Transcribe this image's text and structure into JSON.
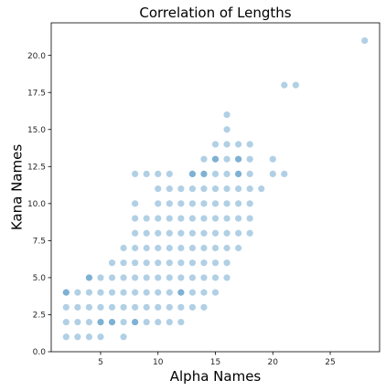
{
  "chart_data": {
    "type": "scatter",
    "title": "Correlation of Lengths",
    "xlabel": "Alpha Names",
    "ylabel": "Kana Names",
    "xlim": [
      0.7,
      29.3
    ],
    "ylim": [
      0.0,
      22.2
    ],
    "xticks": [
      5,
      10,
      15,
      20,
      25
    ],
    "yticks": [
      0.0,
      2.5,
      5.0,
      7.5,
      10.0,
      12.5,
      15.0,
      17.5,
      20.0
    ],
    "xtick_labels": [
      "5",
      "10",
      "15",
      "20",
      "25"
    ],
    "ytick_labels": [
      "0.0",
      "2.5",
      "5.0",
      "7.5",
      "10.0",
      "12.5",
      "15.0",
      "17.5",
      "20.0"
    ],
    "grid": false,
    "marker_color": "#1f77b4",
    "marker_alpha": 0.35,
    "series": [
      {
        "values": [
          [
            2,
            1
          ],
          [
            2,
            2
          ],
          [
            2,
            3
          ],
          [
            2,
            4
          ],
          [
            3,
            1
          ],
          [
            3,
            2
          ],
          [
            3,
            3
          ],
          [
            3,
            4
          ],
          [
            4,
            1
          ],
          [
            4,
            2
          ],
          [
            4,
            3
          ],
          [
            4,
            4
          ],
          [
            4,
            5
          ],
          [
            5,
            1
          ],
          [
            5,
            2
          ],
          [
            5,
            3
          ],
          [
            5,
            4
          ],
          [
            5,
            5
          ],
          [
            6,
            2
          ],
          [
            6,
            3
          ],
          [
            6,
            4
          ],
          [
            6,
            5
          ],
          [
            6,
            6
          ],
          [
            7,
            2
          ],
          [
            7,
            3
          ],
          [
            7,
            4
          ],
          [
            7,
            5
          ],
          [
            7,
            6
          ],
          [
            7,
            7
          ],
          [
            8,
            2
          ],
          [
            8,
            3
          ],
          [
            8,
            4
          ],
          [
            8,
            5
          ],
          [
            8,
            6
          ],
          [
            8,
            7
          ],
          [
            8,
            8
          ],
          [
            9,
            3
          ],
          [
            9,
            4
          ],
          [
            9,
            5
          ],
          [
            9,
            6
          ],
          [
            9,
            7
          ],
          [
            9,
            8
          ],
          [
            9,
            9
          ],
          [
            10,
            3
          ],
          [
            10,
            4
          ],
          [
            10,
            5
          ],
          [
            10,
            6
          ],
          [
            10,
            7
          ],
          [
            10,
            8
          ],
          [
            10,
            9
          ],
          [
            10,
            10
          ],
          [
            11,
            3
          ],
          [
            11,
            4
          ],
          [
            11,
            5
          ],
          [
            11,
            6
          ],
          [
            11,
            7
          ],
          [
            11,
            8
          ],
          [
            11,
            9
          ],
          [
            11,
            10
          ],
          [
            11,
            11
          ],
          [
            12,
            3
          ],
          [
            12,
            4
          ],
          [
            12,
            5
          ],
          [
            12,
            6
          ],
          [
            12,
            7
          ],
          [
            12,
            8
          ],
          [
            12,
            9
          ],
          [
            12,
            10
          ],
          [
            12,
            11
          ],
          [
            13,
            4
          ],
          [
            13,
            5
          ],
          [
            13,
            6
          ],
          [
            13,
            7
          ],
          [
            13,
            8
          ],
          [
            13,
            9
          ],
          [
            13,
            10
          ],
          [
            13,
            11
          ],
          [
            13,
            12
          ],
          [
            14,
            4
          ],
          [
            14,
            5
          ],
          [
            14,
            6
          ],
          [
            14,
            7
          ],
          [
            14,
            8
          ],
          [
            14,
            9
          ],
          [
            14,
            10
          ],
          [
            14,
            11
          ],
          [
            14,
            12
          ],
          [
            15,
            5
          ],
          [
            15,
            6
          ],
          [
            15,
            7
          ],
          [
            15,
            8
          ],
          [
            15,
            9
          ],
          [
            15,
            10
          ],
          [
            15,
            11
          ],
          [
            15,
            12
          ],
          [
            15,
            13
          ],
          [
            16,
            6
          ],
          [
            16,
            7
          ],
          [
            16,
            8
          ],
          [
            16,
            9
          ],
          [
            16,
            10
          ],
          [
            16,
            11
          ],
          [
            16,
            12
          ],
          [
            16,
            13
          ],
          [
            16,
            15
          ],
          [
            17,
            8
          ],
          [
            17,
            9
          ],
          [
            17,
            10
          ],
          [
            17,
            11
          ],
          [
            17,
            12
          ],
          [
            17,
            13
          ],
          [
            18,
            11
          ],
          [
            18,
            12
          ],
          [
            18,
            13
          ]
        ]
      },
      {
        "values": [
          [
            2,
            4
          ],
          [
            4,
            5
          ],
          [
            5,
            2
          ],
          [
            6,
            2
          ],
          [
            7,
            1
          ],
          [
            8,
            2
          ],
          [
            8,
            9
          ],
          [
            8,
            10
          ],
          [
            8,
            12
          ],
          [
            9,
            2
          ],
          [
            9,
            12
          ],
          [
            10,
            2
          ],
          [
            10,
            11
          ],
          [
            10,
            12
          ],
          [
            11,
            2
          ],
          [
            11,
            12
          ],
          [
            12,
            2
          ],
          [
            12,
            4
          ],
          [
            13,
            3
          ],
          [
            13,
            12
          ],
          [
            14,
            3
          ],
          [
            14,
            12
          ],
          [
            14,
            13
          ],
          [
            15,
            4
          ],
          [
            15,
            13
          ],
          [
            15,
            14
          ],
          [
            16,
            5
          ],
          [
            16,
            14
          ],
          [
            16,
            16
          ],
          [
            17,
            7
          ],
          [
            17,
            12
          ],
          [
            17,
            13
          ],
          [
            17,
            14
          ],
          [
            18,
            8
          ],
          [
            18,
            9
          ],
          [
            18,
            10
          ],
          [
            18,
            14
          ],
          [
            19,
            11
          ],
          [
            20,
            12
          ],
          [
            20,
            13
          ],
          [
            21,
            12
          ],
          [
            21,
            18
          ],
          [
            22,
            18
          ],
          [
            28,
            21
          ]
        ]
      }
    ]
  }
}
